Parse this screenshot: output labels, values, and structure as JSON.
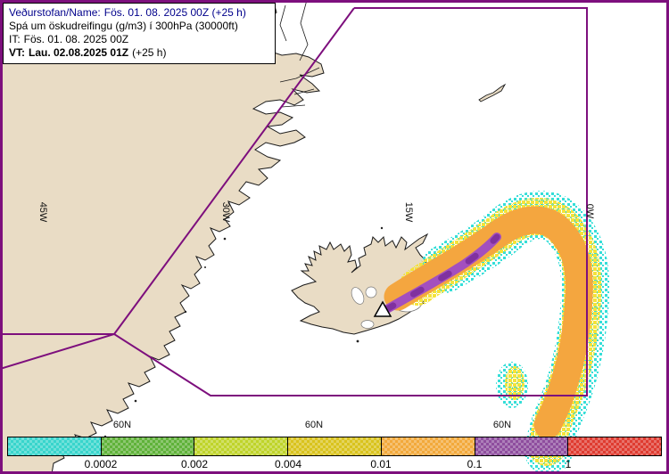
{
  "header": {
    "line1_label": "Veðurstofan/Name:",
    "line1_value": "Fös. 01. 08. 2025 00Z (+25 h)",
    "line2": "Spá um öskudreifingu (g/m3) í 300hPa (30000ft)",
    "line3_label": "IT:",
    "line3_value": "Fös. 01. 08. 2025 00Z",
    "line4_label": "VT:",
    "line4_value": "Lau. 02.08.2025 01Z",
    "line4_suffix": "(+25 h)"
  },
  "graticule": {
    "meridians": [
      "45W",
      "30W",
      "15W",
      "0W"
    ],
    "parallels": [
      "60N",
      "60N",
      "60N"
    ]
  },
  "colorbar": {
    "unit_labels": [
      "0.0002",
      "0.002",
      "0.004",
      "0.01",
      "0.1",
      "1"
    ],
    "colors": [
      "#38D5CC",
      "#5FB239",
      "#BFD42A",
      "#D9C31D",
      "#F2A93B",
      "#8E4D9E",
      "#DF3B30"
    ]
  },
  "map": {
    "land_color": "#E9DCC5",
    "boundary_color": "#7D0F7D",
    "plume_colors": {
      "cyan_fringe": "#35DED8",
      "yellow_band": "#F4E33A",
      "orange_band": "#F4A63F",
      "purple_core": "#A34FBF",
      "violet_core": "#7C2E9B"
    },
    "marker": "volcano-triangle"
  }
}
